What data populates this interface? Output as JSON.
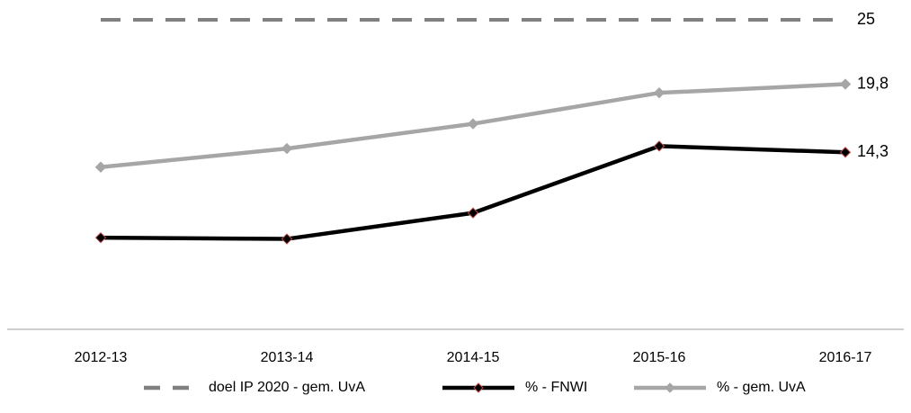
{
  "chart_data": {
    "type": "line",
    "categories": [
      "2012-13",
      "2013-14",
      "2014-15",
      "2015-16",
      "2016-17"
    ],
    "ylim": [
      0,
      25
    ],
    "series": [
      {
        "name": "doel IP 2020 - gem. UvA",
        "color": "#808080",
        "dashed": true,
        "markers": false,
        "values": [
          25,
          25,
          25,
          25,
          25
        ],
        "value_labels": [
          null,
          null,
          null,
          null,
          "25"
        ]
      },
      {
        "name": "% - FNWI",
        "color": "#000000",
        "marker_edge": "#c0504d",
        "markers": true,
        "values": [
          7.4,
          7.3,
          9.4,
          14.8,
          14.3
        ],
        "value_labels": [
          null,
          null,
          null,
          null,
          "14,3"
        ]
      },
      {
        "name": "% - gem. UvA",
        "color": "#a6a6a6",
        "markers": true,
        "values": [
          13.1,
          14.6,
          16.6,
          19.1,
          19.8
        ],
        "value_labels": [
          null,
          null,
          null,
          null,
          "19,8"
        ]
      }
    ]
  }
}
